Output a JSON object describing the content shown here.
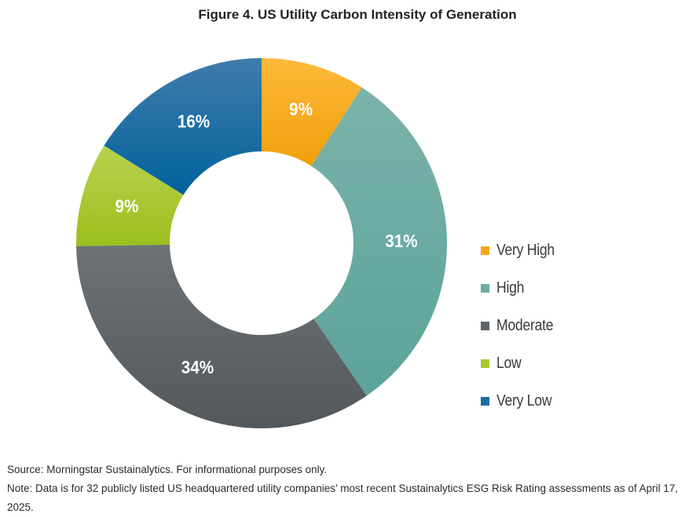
{
  "chart_data": {
    "type": "pie",
    "subtype": "donut",
    "title": "Figure 4. US Utility Carbon Intensity of Generation",
    "start": "top",
    "direction": "clockwise",
    "slices": [
      {
        "name": "Very High",
        "value": 9,
        "label": "9%",
        "color_top": "#FDB93A",
        "color_bottom": "#EFA00A",
        "legend_color": "#F5A81C"
      },
      {
        "name": "High",
        "value": 31,
        "label": "31%",
        "color_top": "#7BB3AA",
        "color_bottom": "#5BA399",
        "legend_color": "#6AADA4"
      },
      {
        "name": "Moderate",
        "value": 34,
        "label": "34%",
        "color_top": "#6C7275",
        "color_bottom": "#52585C",
        "legend_color": "#5D6366"
      },
      {
        "name": "Low",
        "value": 9,
        "label": "9%",
        "color_top": "#B9D24F",
        "color_bottom": "#9CBE1D",
        "legend_color": "#A9C82E"
      },
      {
        "name": "Very Low",
        "value": 16,
        "label": "16%",
        "color_top": "#3F7CAB",
        "color_bottom": "#02629C",
        "legend_color": "#1A6DA5"
      }
    ],
    "legend_position": "right"
  },
  "footer": {
    "source": "Source: Morningstar Sustainalytics. For informational purposes only.",
    "note": "Note: Data is for 32 publicly listed US headquartered utility companies’ most recent Sustainalytics ESG Risk Rating assessments as of April 17, 2025."
  }
}
